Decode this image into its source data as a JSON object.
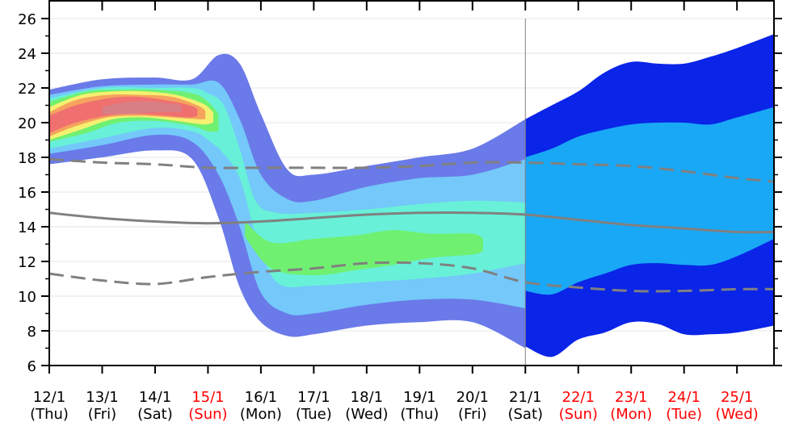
{
  "chart_data": {
    "type": "area",
    "title": "",
    "xlabel": "",
    "ylabel": "",
    "ylim": [
      6,
      26
    ],
    "y_ticks": [
      6,
      8,
      10,
      12,
      14,
      16,
      18,
      20,
      22,
      24,
      26
    ],
    "grid": true,
    "legend": "none",
    "x_ticks": [
      {
        "date": "12/1",
        "day": "(Thu)",
        "weekend": false
      },
      {
        "date": "13/1",
        "day": "(Fri)",
        "weekend": false
      },
      {
        "date": "14/1",
        "day": "(Sat)",
        "weekend": false
      },
      {
        "date": "15/1",
        "day": "(Sun)",
        "weekend": true
      },
      {
        "date": "16/1",
        "day": "(Mon)",
        "weekend": false
      },
      {
        "date": "17/1",
        "day": "(Tue)",
        "weekend": false
      },
      {
        "date": "18/1",
        "day": "(Wed)",
        "weekend": false
      },
      {
        "date": "19/1",
        "day": "(Thu)",
        "weekend": false
      },
      {
        "date": "20/1",
        "day": "(Fri)",
        "weekend": false
      },
      {
        "date": "21/1",
        "day": "(Sat)",
        "weekend": false
      },
      {
        "date": "22/1",
        "day": "(Sun)",
        "weekend": true
      },
      {
        "date": "23/1",
        "day": "(Mon)",
        "weekend": true
      },
      {
        "date": "24/1",
        "day": "(Tue)",
        "weekend": true
      },
      {
        "date": "25/1",
        "day": "(Wed)",
        "weekend": true
      }
    ],
    "x_days": [
      0,
      1,
      2,
      3,
      4,
      5,
      6,
      7,
      8,
      9,
      10,
      11,
      12,
      13
    ],
    "x_range_days": [
      0,
      13.7
    ],
    "split_day": 9,
    "climatology": {
      "median": {
        "x": [
          0,
          1,
          2,
          3,
          4,
          5,
          6,
          7,
          8,
          9,
          10,
          11,
          12,
          13,
          13.7
        ],
        "y": [
          14.8,
          14.5,
          14.3,
          14.2,
          14.3,
          14.5,
          14.7,
          14.8,
          14.8,
          14.7,
          14.4,
          14.1,
          13.9,
          13.7,
          13.7
        ]
      },
      "upper": {
        "x": [
          0,
          1,
          2,
          3,
          4,
          5,
          6,
          7,
          8,
          9,
          10,
          11,
          12,
          13,
          13.7
        ],
        "y": [
          17.9,
          17.7,
          17.6,
          17.4,
          17.4,
          17.4,
          17.4,
          17.5,
          17.7,
          17.7,
          17.6,
          17.5,
          17.2,
          16.8,
          16.6
        ]
      },
      "lower": {
        "x": [
          0,
          1,
          2,
          3,
          4,
          5,
          6,
          7,
          8,
          9,
          10,
          11,
          12,
          13,
          13.7
        ],
        "y": [
          11.3,
          10.9,
          10.7,
          11.1,
          11.4,
          11.6,
          11.9,
          11.9,
          11.6,
          10.8,
          10.5,
          10.3,
          10.3,
          10.4,
          10.4
        ]
      }
    },
    "ensemble_bands": [
      {
        "color": "#6a7ae8",
        "x": [
          0,
          1,
          2,
          2.7,
          3.2,
          3.6,
          4,
          4.5,
          5,
          6,
          7,
          8,
          9
        ],
        "upper": [
          21.9,
          22.5,
          22.6,
          22.5,
          23.9,
          23.4,
          20.5,
          17.3,
          17.0,
          17.5,
          18.0,
          18.5,
          20.2
        ],
        "lower": [
          17.6,
          18.0,
          18.4,
          17.9,
          14.5,
          10.5,
          8.5,
          7.7,
          7.8,
          8.3,
          8.5,
          8.5,
          7.0
        ]
      },
      {
        "color": "#74c8fa",
        "x": [
          0,
          1,
          2,
          2.7,
          3.2,
          3.6,
          4,
          4.5,
          5,
          6,
          7,
          8,
          9
        ],
        "upper": [
          21.6,
          22.1,
          22.2,
          22.2,
          22.3,
          20.2,
          17.0,
          15.6,
          15.5,
          16.3,
          16.8,
          17.0,
          17.9
        ],
        "lower": [
          18.2,
          18.7,
          19.3,
          18.9,
          17.0,
          14.0,
          10.2,
          9.0,
          9.0,
          9.5,
          9.8,
          9.8,
          9.3
        ]
      },
      {
        "color": "#68f0d8",
        "x": [
          0,
          1,
          2,
          2.7,
          3.0,
          3.3,
          3.6,
          3.9,
          4.3,
          5,
          6,
          7,
          8,
          9
        ],
        "upper": [
          21.4,
          22.0,
          22.0,
          22.0,
          21.7,
          21.0,
          18.5,
          15.5,
          14.8,
          14.8,
          15.0,
          15.3,
          15.5,
          15.4
        ],
        "lower": [
          18.5,
          19.1,
          19.7,
          19.5,
          19.0,
          18.2,
          16.8,
          13.6,
          10.8,
          10.6,
          10.8,
          11.0,
          11.3,
          11.9
        ]
      },
      {
        "color": "#70f070",
        "x": [
          0,
          0.7,
          1.3,
          2,
          2.7,
          3.0,
          3.2
        ],
        "upper": [
          21.2,
          21.8,
          21.9,
          21.9,
          21.7,
          21.2,
          20.5
        ],
        "lower": [
          18.9,
          19.4,
          20.0,
          20.1,
          19.8,
          19.5,
          19.5
        ]
      },
      {
        "color": "#70f070",
        "x": [
          3.7,
          4.2,
          5,
          5.8,
          6.5,
          7.2,
          8,
          8.2
        ],
        "upper": [
          14.3,
          13.1,
          13.3,
          13.5,
          13.8,
          13.6,
          13.6,
          13.3
        ],
        "lower": [
          13.4,
          11.6,
          11.2,
          11.5,
          11.8,
          12.2,
          12.4,
          12.6
        ]
      },
      {
        "color": "#f5f070",
        "x": [
          0,
          0.6,
          1.2,
          1.8,
          2.4,
          2.9,
          3.1
        ],
        "upper": [
          20.9,
          21.6,
          21.8,
          21.8,
          21.6,
          21.1,
          20.6
        ],
        "lower": [
          19.0,
          19.6,
          20.2,
          20.3,
          20.1,
          19.9,
          20.0
        ]
      },
      {
        "color": "#f5a35e",
        "x": [
          0,
          0.5,
          1.1,
          1.7,
          2.3,
          2.8,
          2.95
        ],
        "upper": [
          20.6,
          21.3,
          21.6,
          21.6,
          21.5,
          21.0,
          20.7
        ],
        "lower": [
          19.2,
          19.8,
          20.3,
          20.4,
          20.3,
          20.2,
          20.2
        ]
      },
      {
        "color": "#f07070",
        "x": [
          0,
          0.5,
          1.1,
          1.6,
          2.2,
          2.65,
          2.8
        ],
        "upper": [
          20.4,
          21.0,
          21.4,
          21.5,
          21.3,
          21.0,
          20.8
        ],
        "lower": [
          19.4,
          20.0,
          20.4,
          20.5,
          20.4,
          20.3,
          20.4
        ]
      },
      {
        "color": "#d87f86",
        "x": [
          1.0,
          1.5,
          2.0,
          2.5
        ],
        "upper": [
          20.9,
          21.2,
          21.2,
          21.0
        ],
        "lower": [
          20.5,
          20.5,
          20.6,
          20.6
        ]
      }
    ],
    "extended_bands": [
      {
        "color": "#0a24e8",
        "x": [
          9,
          9.5,
          10,
          10.5,
          11,
          11.5,
          12,
          12.5,
          13,
          13.7
        ],
        "upper": [
          20.2,
          21.0,
          21.8,
          22.9,
          23.5,
          23.4,
          23.4,
          23.8,
          24.3,
          25.1
        ],
        "lower": [
          7.1,
          6.5,
          7.5,
          7.9,
          8.5,
          8.4,
          7.8,
          7.8,
          7.9,
          8.3
        ]
      },
      {
        "color": "#19a8f5",
        "x": [
          9,
          9.5,
          10,
          10.5,
          11,
          11.5,
          12,
          12.5,
          13,
          13.7
        ],
        "upper": [
          18.0,
          18.5,
          19.2,
          19.6,
          19.9,
          20.0,
          20.0,
          19.9,
          20.3,
          20.9
        ],
        "lower": [
          10.3,
          10.1,
          10.8,
          11.3,
          11.8,
          11.9,
          11.8,
          11.8,
          12.3,
          13.3
        ]
      }
    ],
    "colors": {
      "climatology_line": "#808080",
      "axis": "#000000",
      "grid": "#e4e4e4",
      "weekend_label": "#ff0000",
      "weekday_label": "#000000",
      "divider": "#808080"
    }
  }
}
